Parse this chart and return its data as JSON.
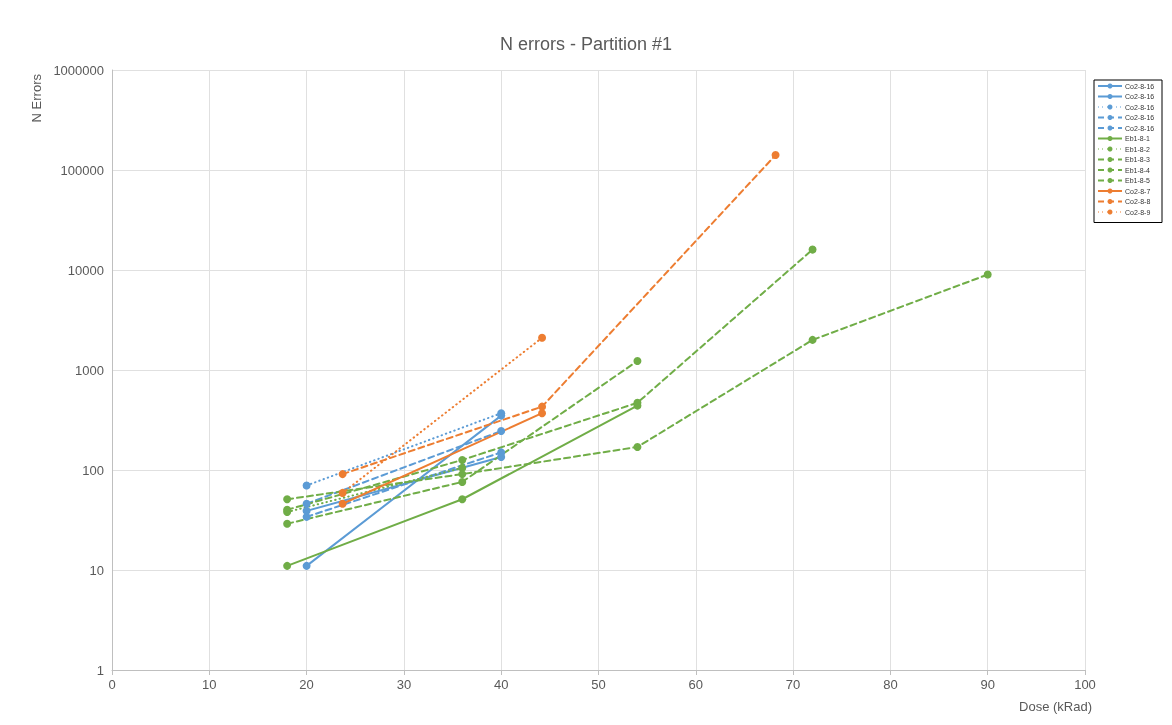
{
  "chart_data": {
    "type": "line",
    "title": "N errors - Partition #1",
    "xlabel": "Dose (kRad)",
    "ylabel": "N Errors",
    "log": "y",
    "grid": true,
    "legend": "right",
    "marker": "circle",
    "xlim": [
      0,
      100
    ],
    "xticks": [
      0,
      10,
      20,
      30,
      40,
      50,
      60,
      70,
      80,
      90,
      100
    ],
    "ylim": [
      1,
      1000000
    ],
    "yticks": [
      1,
      10,
      100,
      1000,
      10000,
      100000,
      1000000
    ],
    "series": [
      {
        "name": "Co2-8-16",
        "color": "#5b9bd5",
        "line_style": "solid",
        "x": [
          20,
          40
        ],
        "values": [
          11,
          350
        ]
      },
      {
        "name": "Co2-8-16",
        "color": "#5b9bd5",
        "line_style": "solid",
        "x": [
          20,
          40
        ],
        "values": [
          39,
          135
        ]
      },
      {
        "name": "Co2-8-16",
        "color": "#5b9bd5",
        "line_style": "dotted",
        "x": [
          20,
          40
        ],
        "values": [
          70,
          370
        ]
      },
      {
        "name": "Co2-8-16",
        "color": "#5b9bd5",
        "line_style": "dashed",
        "x": [
          20,
          40
        ],
        "values": [
          46,
          245
        ]
      },
      {
        "name": "Co2-8-16",
        "color": "#5b9bd5",
        "line_style": "dashed",
        "x": [
          20,
          40
        ],
        "values": [
          34,
          150
        ]
      },
      {
        "name": "Eb1-8-1",
        "color": "#70ad47",
        "line_style": "solid",
        "x": [
          18,
          36,
          54
        ],
        "values": [
          11,
          51,
          440
        ]
      },
      {
        "name": "Eb1-8-2",
        "color": "#70ad47",
        "line_style": "dotted",
        "x": [
          18,
          36
        ],
        "values": [
          38,
          105
        ]
      },
      {
        "name": "Eb1-8-3",
        "color": "#70ad47",
        "line_style": "dashed",
        "x": [
          18,
          36,
          54,
          72
        ],
        "values": [
          40,
          126,
          470,
          16000
        ]
      },
      {
        "name": "Eb1-8-4",
        "color": "#70ad47",
        "line_style": "dashed",
        "x": [
          18,
          36,
          54,
          72,
          90
        ],
        "values": [
          51,
          91,
          170,
          2000,
          9000
        ]
      },
      {
        "name": "Eb1-8-5",
        "color": "#70ad47",
        "line_style": "dashed",
        "x": [
          18,
          36,
          54
        ],
        "values": [
          29,
          76,
          1230
        ]
      },
      {
        "name": "Co2-8-7",
        "color": "#ed7d31",
        "line_style": "solid",
        "x": [
          23.7,
          44.2
        ],
        "values": [
          46,
          370
        ]
      },
      {
        "name": "Co2-8-8",
        "color": "#ed7d31",
        "line_style": "dashed",
        "x": [
          23.7,
          44.2,
          68.2
        ],
        "values": [
          91,
          430,
          141000
        ]
      },
      {
        "name": "Co2-8-9",
        "color": "#ed7d31",
        "line_style": "dotted",
        "x": [
          23.7,
          44.2
        ],
        "values": [
          59,
          2100
        ]
      }
    ]
  }
}
